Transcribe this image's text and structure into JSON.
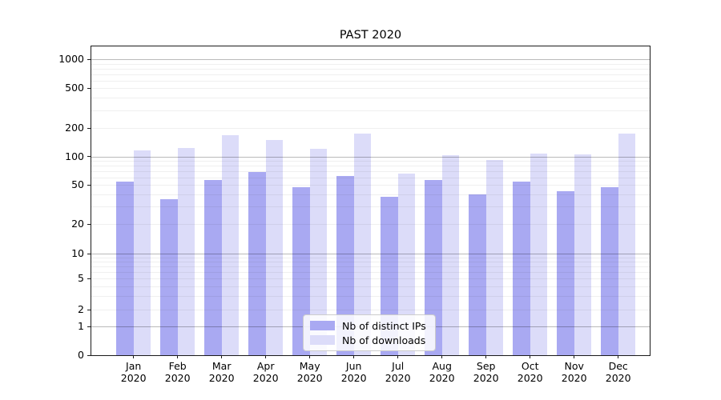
{
  "chart_data": {
    "type": "bar",
    "title": "PAST 2020",
    "categories": [
      "Jan",
      "Feb",
      "Mar",
      "Apr",
      "May",
      "Jun",
      "Jul",
      "Aug",
      "Sep",
      "Oct",
      "Nov",
      "Dec"
    ],
    "category_year": "2020",
    "series": [
      {
        "name": "Nb of distinct IPs",
        "color": "#a9a9f2",
        "values": [
          54,
          36,
          56,
          69,
          47,
          62,
          38,
          56,
          40,
          54,
          43,
          47
        ]
      },
      {
        "name": "Nb of downloads",
        "color": "#dcdcf9",
        "values": [
          116,
          122,
          167,
          149,
          120,
          174,
          66,
          104,
          92,
          107,
          105,
          174
        ]
      }
    ],
    "y_axis": {
      "scale": "symlog",
      "tick_values": [
        1000,
        500,
        200,
        100,
        50,
        20,
        10,
        5,
        2,
        1,
        0
      ],
      "tick_labels": [
        "1000",
        "500",
        "200",
        "100",
        "50",
        "20",
        "10",
        "5",
        "2",
        "1",
        "0"
      ],
      "grid": "horizontal major and minor log gridlines"
    },
    "legend": {
      "position": "inside-bottom-center"
    },
    "colors": {
      "series_dark": "#a9a9f2",
      "series_light": "#dcdcf9",
      "axis_spine": "#1a1a1a",
      "grid_major": "#b0b0b0",
      "grid_minor": "#ededed",
      "legend_border": "#cccccc",
      "background": "#ffffff"
    }
  }
}
